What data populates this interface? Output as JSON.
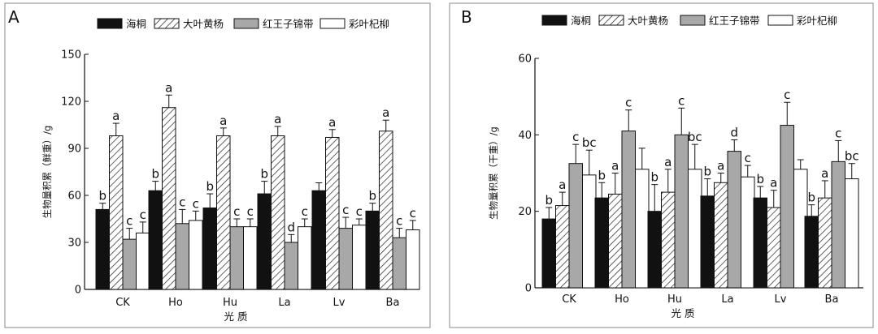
{
  "patterns": {
    "solid_black": "#111111",
    "gray": "#a8a8a8",
    "white": "#ffffff",
    "hatch_stroke": "#222222",
    "axis": "#111111",
    "frame": "#888888"
  },
  "chart_data": [
    {
      "panel_label": "A",
      "type": "bar",
      "ylabel": "生物量积累（鲜重）/g",
      "xlabel": "光  质",
      "categories": [
        "CK",
        "Ho",
        "Hu",
        "La",
        "Lv",
        "Ba"
      ],
      "ylim": [
        0,
        150
      ],
      "yticks": [
        "0",
        "30",
        "60",
        "90",
        "120",
        "150"
      ],
      "legend_position": "top",
      "series": [
        {
          "name": "海桐",
          "fill": "solid",
          "values": [
            51,
            63,
            52,
            61,
            63,
            50
          ],
          "errors": [
            4,
            6,
            9,
            8,
            5,
            5
          ],
          "labels": [
            "b",
            "b",
            "b",
            "b",
            "",
            "b"
          ]
        },
        {
          "name": "大叶黄杨",
          "fill": "hatch",
          "values": [
            98,
            116,
            98,
            98,
            97,
            101
          ],
          "errors": [
            8,
            8,
            5,
            6,
            5,
            7
          ],
          "labels": [
            "a",
            "a",
            "a",
            "a",
            "a",
            "a"
          ]
        },
        {
          "name": "红王子锦带",
          "fill": "gray",
          "values": [
            32,
            42,
            40,
            30,
            39,
            33
          ],
          "errors": [
            7,
            9,
            5,
            5,
            7,
            6
          ],
          "labels": [
            "c",
            "c",
            "c",
            "d",
            "c",
            "c"
          ]
        },
        {
          "name": "彩叶杞柳",
          "fill": "white",
          "values": [
            36,
            44,
            40,
            40,
            41,
            38
          ],
          "errors": [
            7,
            6,
            5,
            5,
            4,
            6
          ],
          "labels": [
            "c",
            "c",
            "c",
            "c",
            "c",
            "c"
          ]
        }
      ]
    },
    {
      "panel_label": "B",
      "type": "bar",
      "ylabel": "生物量积累（干重）/g",
      "xlabel": "光  质",
      "categories": [
        "CK",
        "Ho",
        "Hu",
        "La",
        "Lv",
        "Ba"
      ],
      "ylim": [
        0,
        60
      ],
      "yticks": [
        "0",
        "20",
        "40",
        "60"
      ],
      "legend_position": "top",
      "series": [
        {
          "name": "海桐",
          "fill": "solid",
          "values": [
            18,
            23.5,
            20,
            24,
            23.5,
            18.7
          ],
          "errors": [
            3,
            4,
            7,
            4.5,
            3,
            3
          ],
          "labels": [
            "b",
            "b",
            "b",
            "b",
            "b",
            "b"
          ]
        },
        {
          "name": "大叶黄杨",
          "fill": "hatch",
          "values": [
            21.5,
            24.5,
            25,
            27.5,
            21,
            23.5
          ],
          "errors": [
            3.5,
            5.5,
            6,
            2.5,
            4.5,
            4.5
          ],
          "labels": [
            "a",
            "a",
            "a",
            "a",
            "a",
            "a"
          ]
        },
        {
          "name": "红王子锦带",
          "fill": "gray",
          "values": [
            32.5,
            41,
            40,
            35.7,
            42.5,
            33
          ],
          "errors": [
            5,
            5.5,
            7,
            3,
            6,
            5.5
          ],
          "labels": [
            "c",
            "c",
            "c",
            "d",
            "c",
            "c"
          ]
        },
        {
          "name": "彩叶杞柳",
          "fill": "white",
          "values": [
            29.5,
            31,
            31,
            29,
            31,
            28.5
          ],
          "errors": [
            6.5,
            5.5,
            6.5,
            3,
            2.5,
            4
          ],
          "labels": [
            "bc",
            "",
            "bc",
            "c",
            "",
            "bc"
          ]
        }
      ]
    }
  ]
}
